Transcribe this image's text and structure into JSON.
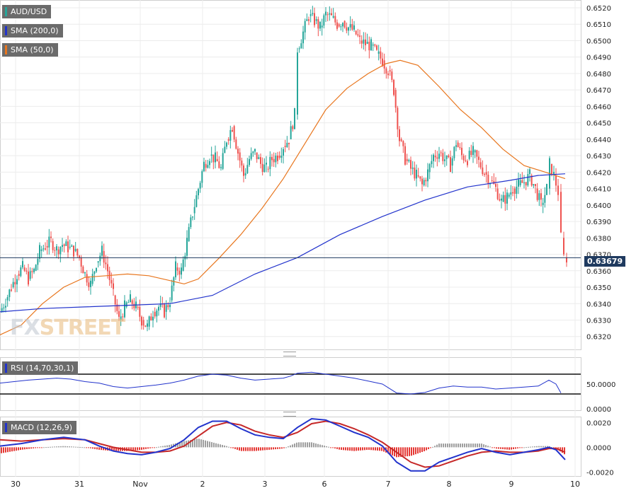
{
  "chart_data": [
    {
      "type": "line",
      "name": "price-panel",
      "legend": [
        {
          "label": "AUD/USD",
          "color": "#26a69a"
        },
        {
          "label": "SMA (200,0)",
          "color": "#2233cc"
        },
        {
          "label": "SMA (50,0)",
          "color": "#e8761e"
        }
      ],
      "current_price_label": "0.63679",
      "current_price": 0.63679,
      "ylim": [
        0.6313,
        0.6523
      ],
      "y_ticks": [
        "0.6520",
        "0.6510",
        "0.6500",
        "0.6490",
        "0.6480",
        "0.6470",
        "0.6460",
        "0.6450",
        "0.6440",
        "0.6430",
        "0.6420",
        "0.6410",
        "0.6400",
        "0.6390",
        "0.6380",
        "0.6370",
        "0.6360",
        "0.6350",
        "0.6340",
        "0.6330",
        "0.6320"
      ],
      "x_labels": [
        "30",
        "31",
        "Nov",
        "2",
        "3",
        "6",
        "7",
        "8",
        "9",
        "10"
      ],
      "close_path": [
        [
          0,
          0.6335
        ],
        [
          8,
          0.6342
        ],
        [
          16,
          0.635
        ],
        [
          24,
          0.6358
        ],
        [
          32,
          0.6362
        ],
        [
          40,
          0.6355
        ],
        [
          48,
          0.636
        ],
        [
          56,
          0.6372
        ],
        [
          64,
          0.6375
        ],
        [
          72,
          0.6378
        ],
        [
          80,
          0.6373
        ],
        [
          88,
          0.6376
        ],
        [
          96,
          0.6374
        ],
        [
          104,
          0.6372
        ],
        [
          112,
          0.6368
        ],
        [
          120,
          0.6358
        ],
        [
          128,
          0.6352
        ],
        [
          136,
          0.6365
        ],
        [
          144,
          0.6372
        ],
        [
          152,
          0.636
        ],
        [
          160,
          0.6345
        ],
        [
          168,
          0.633
        ],
        [
          176,
          0.6338
        ],
        [
          184,
          0.6342
        ],
        [
          192,
          0.6338
        ],
        [
          200,
          0.633
        ],
        [
          208,
          0.6326
        ],
        [
          216,
          0.6335
        ],
        [
          224,
          0.6338
        ],
        [
          232,
          0.6335
        ],
        [
          240,
          0.6342
        ],
        [
          248,
          0.6362
        ],
        [
          256,
          0.636
        ],
        [
          264,
          0.6378
        ],
        [
          272,
          0.6395
        ],
        [
          280,
          0.641
        ],
        [
          288,
          0.6425
        ],
        [
          296,
          0.643
        ],
        [
          304,
          0.6428
        ],
        [
          312,
          0.6422
        ],
        [
          320,
          0.644
        ],
        [
          328,
          0.6448
        ],
        [
          336,
          0.6432
        ],
        [
          344,
          0.6418
        ],
        [
          352,
          0.6428
        ],
        [
          360,
          0.6432
        ],
        [
          368,
          0.6425
        ],
        [
          376,
          0.6422
        ],
        [
          384,
          0.6428
        ],
        [
          392,
          0.643
        ],
        [
          400,
          0.6436
        ],
        [
          408,
          0.644
        ],
        [
          416,
          0.6455
        ],
        [
          420,
          0.6495
        ],
        [
          428,
          0.6505
        ],
        [
          436,
          0.6515
        ],
        [
          444,
          0.6512
        ],
        [
          452,
          0.6508
        ],
        [
          460,
          0.6516
        ],
        [
          468,
          0.6514
        ],
        [
          476,
          0.651
        ],
        [
          484,
          0.6512
        ],
        [
          492,
          0.6508
        ],
        [
          500,
          0.6506
        ],
        [
          508,
          0.65
        ],
        [
          516,
          0.6498
        ],
        [
          524,
          0.6497
        ],
        [
          532,
          0.6492
        ],
        [
          540,
          0.6488
        ],
        [
          548,
          0.6482
        ],
        [
          556,
          0.647
        ],
        [
          564,
          0.644
        ],
        [
          572,
          0.6428
        ],
        [
          580,
          0.6422
        ],
        [
          588,
          0.6418
        ],
        [
          596,
          0.6412
        ],
        [
          604,
          0.642
        ],
        [
          612,
          0.643
        ],
        [
          620,
          0.6432
        ],
        [
          628,
          0.6428
        ],
        [
          636,
          0.6424
        ],
        [
          644,
          0.6438
        ],
        [
          652,
          0.643
        ],
        [
          660,
          0.6428
        ],
        [
          668,
          0.6432
        ],
        [
          676,
          0.6426
        ],
        [
          684,
          0.642
        ],
        [
          692,
          0.6415
        ],
        [
          700,
          0.641
        ],
        [
          708,
          0.6402
        ],
        [
          716,
          0.6405
        ],
        [
          724,
          0.641
        ],
        [
          732,
          0.6412
        ],
        [
          740,
          0.6414
        ],
        [
          748,
          0.6418
        ],
        [
          756,
          0.641
        ],
        [
          764,
          0.64
        ],
        [
          772,
          0.641
        ],
        [
          776,
          0.6425
        ],
        [
          782,
          0.6418
        ],
        [
          788,
          0.6408
        ],
        [
          792,
          0.638
        ],
        [
          796,
          0.6368
        ],
        [
          800,
          0.63679
        ]
      ],
      "sma200_path": [
        [
          0,
          0.6335
        ],
        [
          60,
          0.6337
        ],
        [
          120,
          0.6338
        ],
        [
          180,
          0.6339
        ],
        [
          240,
          0.634
        ],
        [
          300,
          0.6345
        ],
        [
          360,
          0.6358
        ],
        [
          420,
          0.6368
        ],
        [
          480,
          0.6382
        ],
        [
          540,
          0.6393
        ],
        [
          600,
          0.6403
        ],
        [
          660,
          0.6411
        ],
        [
          720,
          0.6415
        ],
        [
          760,
          0.6418
        ],
        [
          798,
          0.6419
        ]
      ],
      "sma50_path": [
        [
          0,
          0.6321
        ],
        [
          30,
          0.6327
        ],
        [
          60,
          0.634
        ],
        [
          90,
          0.635
        ],
        [
          120,
          0.6356
        ],
        [
          150,
          0.6357
        ],
        [
          180,
          0.6358
        ],
        [
          210,
          0.6357
        ],
        [
          240,
          0.6354
        ],
        [
          260,
          0.6352
        ],
        [
          280,
          0.6355
        ],
        [
          310,
          0.6368
        ],
        [
          340,
          0.6382
        ],
        [
          370,
          0.6398
        ],
        [
          400,
          0.6416
        ],
        [
          430,
          0.6437
        ],
        [
          460,
          0.6458
        ],
        [
          490,
          0.6471
        ],
        [
          520,
          0.648
        ],
        [
          545,
          0.6486
        ],
        [
          565,
          0.6488
        ],
        [
          590,
          0.6485
        ],
        [
          620,
          0.6472
        ],
        [
          650,
          0.6458
        ],
        [
          680,
          0.6447
        ],
        [
          710,
          0.6434
        ],
        [
          740,
          0.6424
        ],
        [
          770,
          0.642
        ],
        [
          798,
          0.6416
        ]
      ]
    },
    {
      "type": "line",
      "name": "rsi-panel",
      "legend": [
        {
          "label": "RSI (14,70,30,1)",
          "color": "#2233cc"
        }
      ],
      "ylim": [
        0,
        100
      ],
      "y_ticks": [
        "50.0000",
        "0.0000"
      ],
      "levels": [
        70,
        30
      ],
      "path": [
        [
          0,
          52
        ],
        [
          20,
          55
        ],
        [
          40,
          58
        ],
        [
          60,
          60
        ],
        [
          80,
          62
        ],
        [
          100,
          60
        ],
        [
          120,
          55
        ],
        [
          140,
          52
        ],
        [
          160,
          45
        ],
        [
          180,
          42
        ],
        [
          200,
          45
        ],
        [
          220,
          48
        ],
        [
          240,
          52
        ],
        [
          260,
          58
        ],
        [
          280,
          66
        ],
        [
          300,
          70
        ],
        [
          320,
          68
        ],
        [
          340,
          62
        ],
        [
          360,
          58
        ],
        [
          380,
          60
        ],
        [
          400,
          62
        ],
        [
          410,
          66
        ],
        [
          420,
          72
        ],
        [
          440,
          74
        ],
        [
          460,
          70
        ],
        [
          480,
          66
        ],
        [
          500,
          62
        ],
        [
          520,
          56
        ],
        [
          540,
          50
        ],
        [
          560,
          32
        ],
        [
          580,
          30
        ],
        [
          600,
          33
        ],
        [
          620,
          42
        ],
        [
          640,
          46
        ],
        [
          660,
          44
        ],
        [
          680,
          44
        ],
        [
          700,
          40
        ],
        [
          720,
          42
        ],
        [
          740,
          44
        ],
        [
          760,
          46
        ],
        [
          775,
          58
        ],
        [
          785,
          50
        ],
        [
          792,
          32
        ]
      ]
    },
    {
      "type": "line",
      "name": "macd-panel",
      "legend": [
        {
          "label": "MACD (12,26,9)",
          "color": "#2233cc"
        }
      ],
      "ylim": [
        -0.0022,
        0.0023
      ],
      "y_ticks": [
        "0.0020",
        "0.0000",
        "-0.0020"
      ],
      "macd_path": [
        [
          0,
          0.0001
        ],
        [
          30,
          0.0003
        ],
        [
          60,
          0.0006
        ],
        [
          90,
          0.0008
        ],
        [
          120,
          0.0006
        ],
        [
          140,
          0.0001
        ],
        [
          160,
          -0.0003
        ],
        [
          180,
          -0.0005
        ],
        [
          200,
          -0.0006
        ],
        [
          220,
          -0.0004
        ],
        [
          240,
          -0.0001
        ],
        [
          260,
          0.0006
        ],
        [
          280,
          0.0016
        ],
        [
          300,
          0.0021
        ],
        [
          320,
          0.0021
        ],
        [
          340,
          0.0015
        ],
        [
          360,
          0.001
        ],
        [
          380,
          0.0008
        ],
        [
          400,
          0.0007
        ],
        [
          420,
          0.0016
        ],
        [
          440,
          0.0023
        ],
        [
          460,
          0.0022
        ],
        [
          480,
          0.0017
        ],
        [
          500,
          0.0012
        ],
        [
          520,
          0.0008
        ],
        [
          540,
          0.0001
        ],
        [
          560,
          -0.0012
        ],
        [
          580,
          -0.0019
        ],
        [
          600,
          -0.0019
        ],
        [
          620,
          -0.0012
        ],
        [
          640,
          -0.0008
        ],
        [
          660,
          -0.0004
        ],
        [
          680,
          -0.0001
        ],
        [
          700,
          -0.0004
        ],
        [
          720,
          -0.0006
        ],
        [
          740,
          -0.0004
        ],
        [
          760,
          -0.0002
        ],
        [
          775,
          0.0
        ],
        [
          785,
          -0.0002
        ],
        [
          798,
          -0.001
        ]
      ],
      "signal_path": [
        [
          0,
          0.0006
        ],
        [
          30,
          0.0005
        ],
        [
          60,
          0.0006
        ],
        [
          90,
          0.0007
        ],
        [
          120,
          0.0006
        ],
        [
          140,
          0.0003
        ],
        [
          160,
          0.0
        ],
        [
          180,
          -0.0002
        ],
        [
          200,
          -0.0004
        ],
        [
          220,
          -0.0004
        ],
        [
          240,
          -0.0003
        ],
        [
          260,
          0.0001
        ],
        [
          280,
          0.0009
        ],
        [
          300,
          0.0017
        ],
        [
          320,
          0.002
        ],
        [
          340,
          0.0018
        ],
        [
          360,
          0.0013
        ],
        [
          380,
          0.001
        ],
        [
          400,
          0.0008
        ],
        [
          420,
          0.0012
        ],
        [
          440,
          0.0019
        ],
        [
          460,
          0.0021
        ],
        [
          480,
          0.0019
        ],
        [
          500,
          0.0015
        ],
        [
          520,
          0.001
        ],
        [
          540,
          0.0004
        ],
        [
          560,
          -0.0004
        ],
        [
          580,
          -0.0012
        ],
        [
          600,
          -0.0016
        ],
        [
          620,
          -0.0015
        ],
        [
          640,
          -0.0011
        ],
        [
          660,
          -0.0007
        ],
        [
          680,
          -0.0004
        ],
        [
          700,
          -0.0003
        ],
        [
          720,
          -0.0004
        ],
        [
          740,
          -0.0004
        ],
        [
          760,
          -0.0003
        ],
        [
          775,
          -0.0001
        ],
        [
          785,
          -0.0001
        ],
        [
          798,
          -0.0004
        ]
      ]
    }
  ]
}
